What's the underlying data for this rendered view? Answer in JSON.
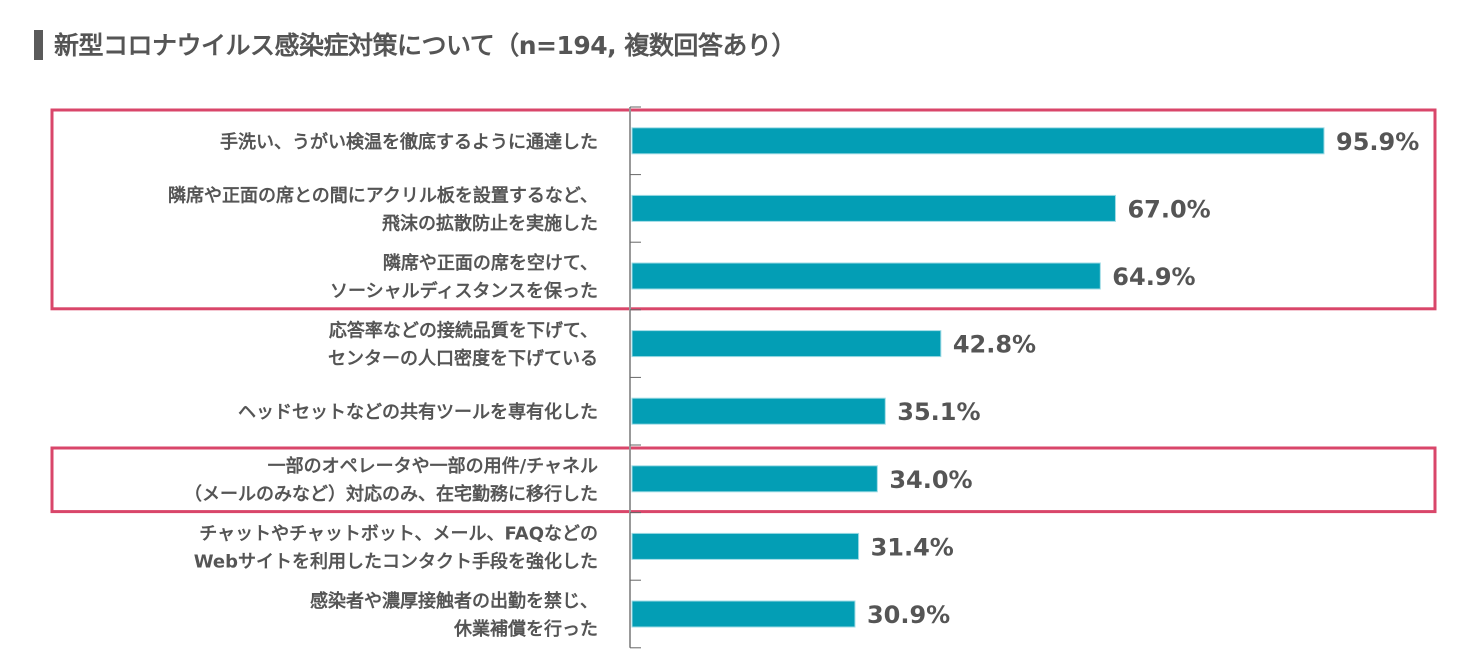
{
  "chart_data": {
    "type": "bar",
    "orientation": "horizontal",
    "title": "新型コロナウイルス感染症対策について（n=194, 複数回答あり）",
    "categories": [
      [
        "手洗い、うがい検温を徹底するように通達した"
      ],
      [
        "隣席や正面の席との間にアクリル板を設置するなど、",
        "飛沫の拡散防止を実施した"
      ],
      [
        "隣席や正面の席を空けて、",
        "ソーシャルディスタンスを保った"
      ],
      [
        "応答率などの接続品質を下げて、",
        "センターの人口密度を下げている"
      ],
      [
        "ヘッドセットなどの共有ツールを専有化した"
      ],
      [
        "一部のオペレータや一部の用件/チャネル",
        "（メールのみなど）対応のみ、在宅勤務に移行した"
      ],
      [
        "チャットやチャットボット、メール、FAQなどの",
        "Webサイトを利用したコンタクト手段を強化した"
      ],
      [
        "感染者や濃厚接触者の出勤を禁じ、",
        "休業補償を行った"
      ]
    ],
    "values": [
      95.9,
      67.0,
      64.9,
      42.8,
      35.1,
      34.0,
      31.4,
      30.9
    ],
    "value_labels": [
      "95.9%",
      "67.0%",
      "64.9%",
      "42.8%",
      "35.1%",
      "34.0%",
      "31.4%",
      "30.9%"
    ],
    "xlim": [
      0,
      100
    ],
    "grid": false,
    "legend": "none",
    "highlighted_groups": [
      [
        0,
        1,
        2
      ],
      [
        5
      ]
    ],
    "colors": {
      "bar": "#039eb5",
      "highlight_box": "#d9466a",
      "text": "#555555",
      "axis": "#999999"
    }
  }
}
